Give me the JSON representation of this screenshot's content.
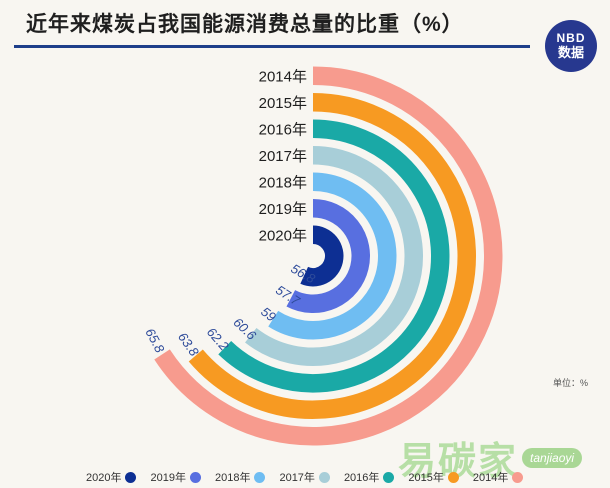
{
  "title": "近年来煤炭占我国能源消费总量的比重（%）",
  "logo": {
    "top": "NBD",
    "bottom": "数据"
  },
  "unit": "单位：%",
  "brand": {
    "name": "易碳家",
    "site": "tanjiaoyi"
  },
  "chart_data": {
    "type": "radial-bar",
    "title": "近年来煤炭占我国能源消费总量的比重（%）",
    "unit": "%",
    "max_value": 100,
    "legend_position": "bottom",
    "categories": [
      "2014年",
      "2015年",
      "2016年",
      "2017年",
      "2018年",
      "2019年",
      "2020年"
    ],
    "values": [
      65.8,
      63.8,
      62.2,
      60.6,
      59,
      57.7,
      56.8
    ],
    "colors": [
      "#f79b8e",
      "#f79a22",
      "#1aa9a6",
      "#a8ced8",
      "#6fbdf2",
      "#586fe0",
      "#0d2f93"
    ]
  },
  "legend": [
    {
      "label": "2020年",
      "color": "#0d2f93"
    },
    {
      "label": "2019年",
      "color": "#586fe0"
    },
    {
      "label": "2018年",
      "color": "#6fbdf2"
    },
    {
      "label": "2017年",
      "color": "#a8ced8"
    },
    {
      "label": "2016年",
      "color": "#1aa9a6"
    },
    {
      "label": "2015年",
      "color": "#f79a22"
    },
    {
      "label": "2014年",
      "color": "#f79b8e"
    }
  ]
}
